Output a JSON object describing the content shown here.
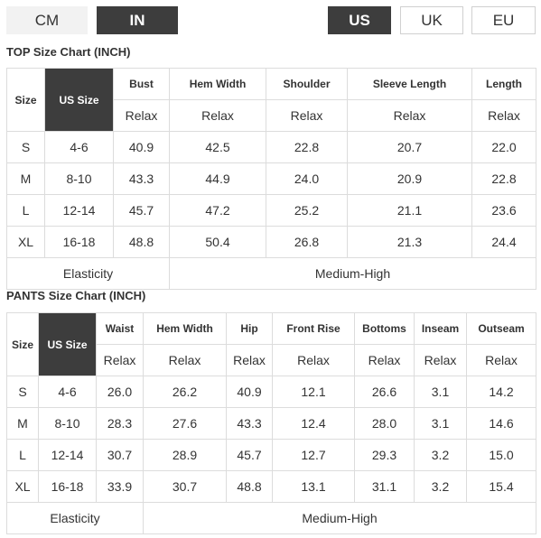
{
  "unit_toggle": {
    "cm": "CM",
    "inch": "IN",
    "selected": "IN"
  },
  "region_toggle": {
    "us": "US",
    "uk": "UK",
    "eu": "EU",
    "selected": "US"
  },
  "top": {
    "title": "TOP Size Chart (INCH)",
    "headers": [
      "Size",
      "US Size",
      "Bust",
      "Hem Width",
      "Shoulder",
      "Sleeve Length",
      "Length"
    ],
    "fit_labels": [
      "Relax",
      "Relax",
      "Relax",
      "Relax",
      "Relax"
    ],
    "rows": [
      [
        "S",
        "4-6",
        "40.9",
        "42.5",
        "22.8",
        "20.7",
        "22.0"
      ],
      [
        "M",
        "8-10",
        "43.3",
        "44.9",
        "24.0",
        "20.9",
        "22.8"
      ],
      [
        "L",
        "12-14",
        "45.7",
        "47.2",
        "25.2",
        "21.1",
        "23.6"
      ],
      [
        "XL",
        "16-18",
        "48.8",
        "50.4",
        "26.8",
        "21.3",
        "24.4"
      ]
    ],
    "elasticity_label": "Elasticity",
    "elasticity_value": "Medium-High"
  },
  "pants": {
    "title": "PANTS Size Chart (INCH)",
    "headers": [
      "Size",
      "US Size",
      "Waist",
      "Hem Width",
      "Hip",
      "Front Rise",
      "Bottoms",
      "Inseam",
      "Outseam"
    ],
    "fit_labels": [
      "Relax",
      "Relax",
      "Relax",
      "Relax",
      "Relax",
      "Relax",
      "Relax"
    ],
    "rows": [
      [
        "S",
        "4-6",
        "26.0",
        "26.2",
        "40.9",
        "12.1",
        "26.6",
        "3.1",
        "14.2"
      ],
      [
        "M",
        "8-10",
        "28.3",
        "27.6",
        "43.3",
        "12.4",
        "28.0",
        "3.1",
        "14.6"
      ],
      [
        "L",
        "12-14",
        "30.7",
        "28.9",
        "45.7",
        "12.7",
        "29.3",
        "3.2",
        "15.0"
      ],
      [
        "XL",
        "16-18",
        "33.9",
        "30.7",
        "48.8",
        "13.1",
        "31.1",
        "3.2",
        "15.4"
      ]
    ],
    "elasticity_label": "Elasticity",
    "elasticity_value": "Medium-High"
  },
  "colors": {
    "selected_bg": "#3d3d3d",
    "selected_text": "#ffffff",
    "border": "#dcdcdc",
    "text": "#333333"
  }
}
